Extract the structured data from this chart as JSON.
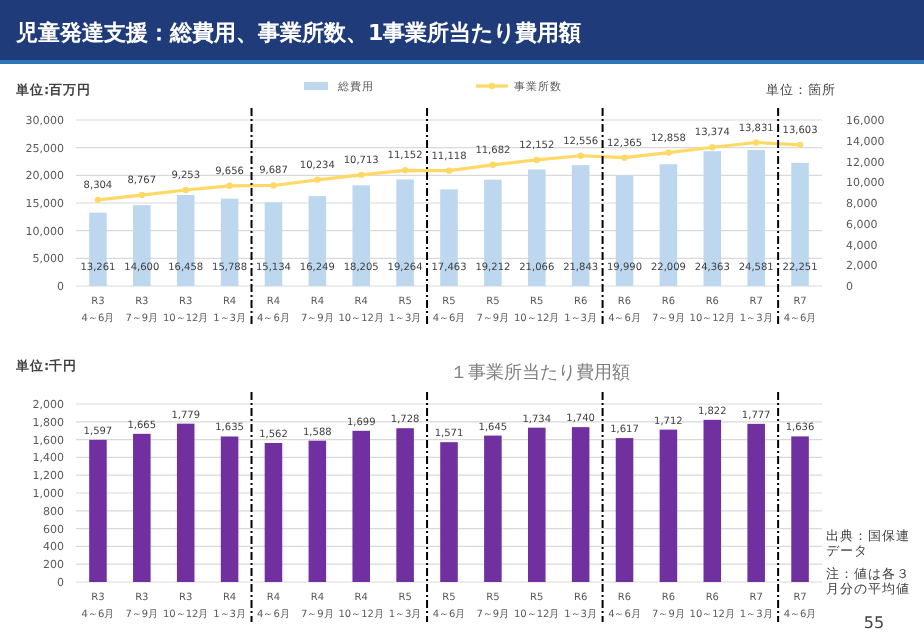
{
  "chart_data": [
    {
      "type": "bar",
      "title": "児童発達支援：総費用、事業所数、1事業所当たり費用額",
      "ylabel": "単位:百万円",
      "y2label": "単位：箇所",
      "categories": [
        "R3\n4～6月",
        "R3\n7～9月",
        "R3\n10～12月",
        "R4\n1～3月",
        "R4\n4～6月",
        "R4\n7～9月",
        "R4\n10～12月",
        "R5\n1～3月",
        "R5\n4～6月",
        "R5\n7～9月",
        "R5\n10～12月",
        "R6\n1～3月",
        "R6\n4～6月",
        "R6\n7～9月",
        "R6\n10～12月",
        "R7\n1～3月",
        "R7\n4～6月"
      ],
      "series": [
        {
          "name": "総費用",
          "color": "#bdd7ee",
          "values": [
            13261,
            14600,
            16458,
            15788,
            15134,
            16249,
            18205,
            19264,
            17463,
            19212,
            21066,
            21843,
            19990,
            22009,
            24363,
            24581,
            22251
          ],
          "value_labels": [
            "13,261",
            "14,600",
            "16,458",
            "15,788",
            "15,134",
            "16,249",
            "18,205",
            "19,264",
            "17,463",
            "19,212",
            "21,066",
            "21,843",
            "19,990",
            "22,009",
            "24,363",
            "24,581",
            "22,251"
          ]
        },
        {
          "name": "事業所数",
          "type": "line",
          "axis": "y2",
          "color": "#ffd966",
          "values": [
            8304,
            8767,
            9253,
            9656,
            9687,
            10234,
            10713,
            11152,
            11118,
            11682,
            12152,
            12556,
            12365,
            12858,
            13374,
            13831,
            13603
          ],
          "value_labels": [
            "8,304",
            "8,767",
            "9,253",
            "9,656",
            "9,687",
            "10,234",
            "10,713",
            "11,152",
            "11,118",
            "11,682",
            "12,152",
            "12,556",
            "12,365",
            "12,858",
            "13,374",
            "13,831",
            "13,603"
          ]
        }
      ],
      "ylim": [
        0,
        30000
      ],
      "yticks": [
        0,
        {
          "value": 5000,
          "label": "5,000"
        },
        {
          "value": 10000,
          "label": "10,000"
        },
        {
          "value": 15000,
          "label": "15,000"
        },
        {
          "value": 20000,
          "label": "20,000"
        },
        {
          "value": 25000,
          "label": "25,000"
        },
        {
          "value": 30000,
          "label": "30,000"
        }
      ],
      "y2lim": [
        0,
        16000
      ],
      "y2ticks": [
        0,
        {
          "value": 2000,
          "label": "2,000"
        },
        {
          "value": 4000,
          "label": "4,000"
        },
        {
          "value": 6000,
          "label": "6,000"
        },
        {
          "value": 8000,
          "label": "8,000"
        },
        {
          "value": 10000,
          "label": "10,000"
        },
        {
          "value": 12000,
          "label": "12,000"
        },
        {
          "value": 14000,
          "label": "14,000"
        },
        {
          "value": 16000,
          "label": "16,000"
        }
      ],
      "grid": "y",
      "legend": "top",
      "marker": "circle"
    },
    {
      "type": "bar",
      "title": "１事業所当たり費用額",
      "ylabel": "単位:千円",
      "categories": [
        "R3\n4～6月",
        "R3\n7～9月",
        "R3\n10～12月",
        "R4\n1～3月",
        "R4\n4～6月",
        "R4\n7～9月",
        "R4\n10～12月",
        "R5\n1～3月",
        "R5\n4～6月",
        "R5\n7～9月",
        "R5\n10～12月",
        "R6\n1～3月",
        "R6\n4～6月",
        "R6\n7～9月",
        "R6\n10～12月",
        "R7\n1～3月",
        "R7\n4～6月"
      ],
      "values": [
        1597,
        1665,
        1779,
        1635,
        1562,
        1588,
        1699,
        1728,
        1571,
        1645,
        1734,
        1740,
        1617,
        1712,
        1822,
        1777,
        1636
      ],
      "value_labels": [
        "1,597",
        "1,665",
        "1,779",
        "1,635",
        "1,562",
        "1,588",
        "1,699",
        "1,728",
        "1,571",
        "1,645",
        "1,734",
        "1,740",
        "1,617",
        "1,712",
        "1,822",
        "1,777",
        "1,636"
      ],
      "color": "#7030a0",
      "ylim": [
        0,
        2000
      ],
      "yticks": [
        0,
        200,
        400,
        600,
        800,
        {
          "value": 1000,
          "label": "1,000"
        },
        {
          "value": 1200,
          "label": "1,200"
        },
        {
          "value": 1400,
          "label": "1,400"
        },
        {
          "value": 1600,
          "label": "1,600"
        },
        {
          "value": 1800,
          "label": "1,800"
        },
        {
          "value": 2000,
          "label": "2,000"
        }
      ],
      "grid": "y",
      "annotations": [
        "出典：国保連データ",
        "注：値は各３月分の平均値",
        "55"
      ]
    }
  ]
}
